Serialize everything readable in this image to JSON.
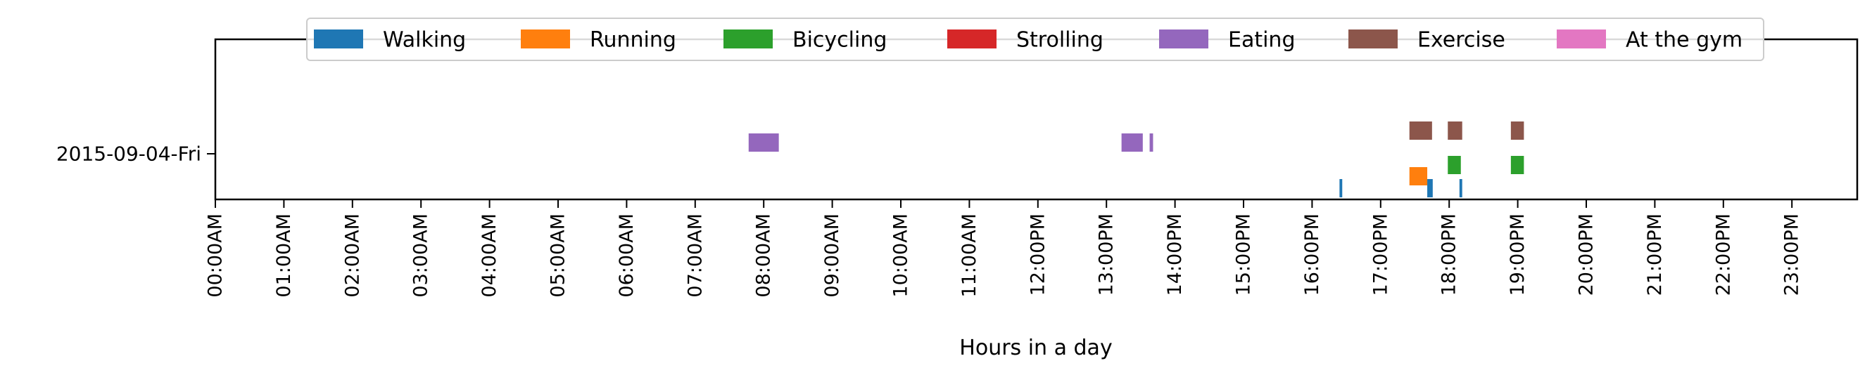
{
  "chart_data": {
    "type": "bar",
    "orientation": "horizontal-timeline",
    "title": "",
    "xlabel": "Hours in a day",
    "ylabel": "",
    "xlim": [
      0,
      24
    ],
    "grid": false,
    "legend_placement": "top-center",
    "y_categories": [
      "2015-09-04-Fri"
    ],
    "x_ticks": [
      {
        "value": 0,
        "label": "00:00AM"
      },
      {
        "value": 1,
        "label": "01:00AM"
      },
      {
        "value": 2,
        "label": "02:00AM"
      },
      {
        "value": 3,
        "label": "03:00AM"
      },
      {
        "value": 4,
        "label": "04:00AM"
      },
      {
        "value": 5,
        "label": "05:00AM"
      },
      {
        "value": 6,
        "label": "06:00AM"
      },
      {
        "value": 7,
        "label": "07:00AM"
      },
      {
        "value": 8,
        "label": "08:00AM"
      },
      {
        "value": 9,
        "label": "09:00AM"
      },
      {
        "value": 10,
        "label": "10:00AM"
      },
      {
        "value": 11,
        "label": "11:00AM"
      },
      {
        "value": 12,
        "label": "12:00PM"
      },
      {
        "value": 13,
        "label": "13:00PM"
      },
      {
        "value": 14,
        "label": "14:00PM"
      },
      {
        "value": 15,
        "label": "15:00PM"
      },
      {
        "value": 16,
        "label": "16:00PM"
      },
      {
        "value": 17,
        "label": "17:00PM"
      },
      {
        "value": 18,
        "label": "18:00PM"
      },
      {
        "value": 19,
        "label": "19:00PM"
      },
      {
        "value": 20,
        "label": "20:00PM"
      },
      {
        "value": 21,
        "label": "21:00PM"
      },
      {
        "value": 22,
        "label": "22:00PM"
      },
      {
        "value": 23,
        "label": "23:00PM"
      }
    ],
    "series": [
      {
        "name": "Walking",
        "color": "#1f77b4",
        "intervals": [
          [
            16.4,
            16.44
          ],
          [
            17.68,
            17.76
          ],
          [
            18.15,
            18.19
          ]
        ]
      },
      {
        "name": "Running",
        "color": "#ff7f0e",
        "intervals": [
          [
            17.42,
            17.68
          ]
        ]
      },
      {
        "name": "Bicycling",
        "color": "#2ca02c",
        "intervals": [
          [
            17.98,
            18.17
          ],
          [
            18.9,
            19.09
          ]
        ]
      },
      {
        "name": "Strolling",
        "color": "#d62728",
        "intervals": []
      },
      {
        "name": "Eating",
        "color": "#9467bd",
        "intervals": [
          [
            7.78,
            8.22
          ],
          [
            13.22,
            13.53
          ],
          [
            13.63,
            13.68
          ]
        ]
      },
      {
        "name": "Exercise",
        "color": "#8c564b",
        "intervals": [
          [
            17.42,
            17.75
          ],
          [
            17.98,
            18.19
          ],
          [
            18.9,
            19.09
          ]
        ]
      },
      {
        "name": "At the gym",
        "color": "#e377c2",
        "intervals": []
      }
    ]
  }
}
